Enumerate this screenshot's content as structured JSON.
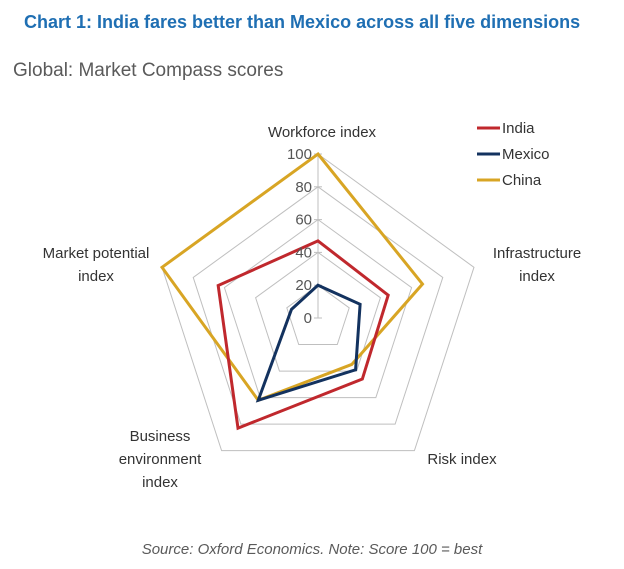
{
  "title": "Chart 1: India fares better than Mexico across all five dimensions",
  "subtitle": "Global: Market Compass scores",
  "source": "Source: Oxford Economics. Note: Score 100 = best",
  "chart_data": {
    "type": "radar",
    "axes": [
      {
        "key": "workforce",
        "label": [
          "Workforce index"
        ]
      },
      {
        "key": "infrastructure",
        "label": [
          "Infrastructure",
          "index"
        ]
      },
      {
        "key": "risk",
        "label": [
          "Risk index"
        ]
      },
      {
        "key": "business",
        "label": [
          "Business",
          "environment",
          "index"
        ]
      },
      {
        "key": "market",
        "label": [
          "Market potential",
          "index"
        ]
      }
    ],
    "ticks": [
      0,
      20,
      40,
      60,
      80,
      100
    ],
    "range": [
      0,
      100
    ],
    "series": [
      {
        "name": "India",
        "color": "#c0282d",
        "values": [
          47,
          45,
          46,
          83,
          64
        ]
      },
      {
        "name": "Mexico",
        "color": "#13325f",
        "values": [
          20,
          27,
          39,
          62,
          17
        ]
      },
      {
        "name": "China",
        "color": "#d8a524",
        "values": [
          100,
          67,
          35,
          62,
          100
        ]
      }
    ],
    "legend_position": "top-right",
    "grid": true
  }
}
